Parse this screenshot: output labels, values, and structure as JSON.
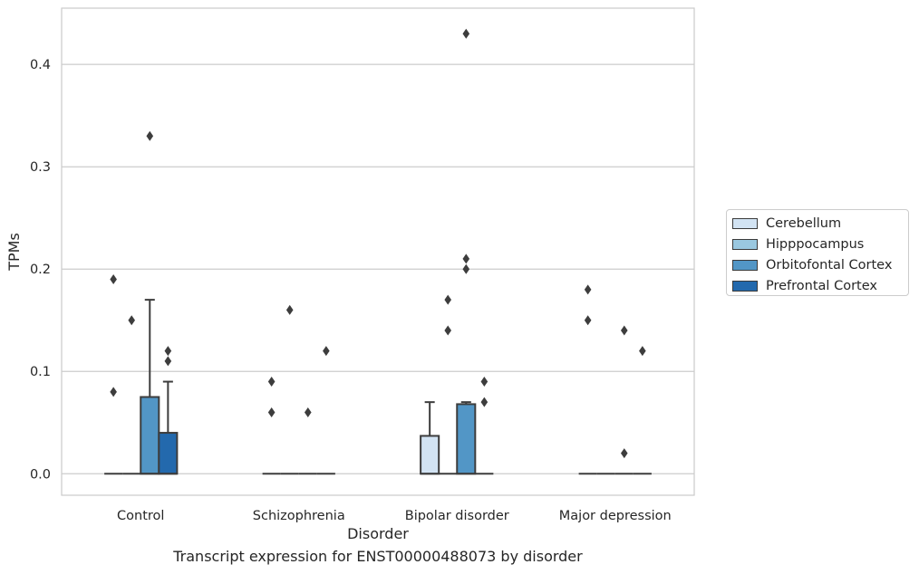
{
  "chart_data": {
    "type": "box",
    "xlabel": "Disorder",
    "ylabel": "TPMs",
    "caption": "Transcript expression for ENST00000488073 by disorder",
    "ylim": [
      -0.021,
      0.455
    ],
    "yticks": [
      0.0,
      0.1,
      0.2,
      0.3,
      0.4
    ],
    "ytick_labels": [
      "0.0",
      "0.1",
      "0.2",
      "0.3",
      "0.4"
    ],
    "grid": true,
    "legend_position": "right",
    "categories": [
      "Control",
      "Schizophrenia",
      "Bipolar disorder",
      "Major depression"
    ],
    "series": [
      {
        "name": "Cerebellum",
        "color": "#d2e3f3",
        "boxes": [
          {
            "q1": 0,
            "median": 0,
            "q3": 0,
            "whisker_low": 0,
            "whisker_high": 0,
            "outliers": [
              0.08,
              0.19
            ]
          },
          {
            "q1": 0,
            "median": 0,
            "q3": 0,
            "whisker_low": 0,
            "whisker_high": 0,
            "outliers": [
              0.06,
              0.09
            ]
          },
          {
            "q1": 0,
            "median": 0,
            "q3": 0.037,
            "whisker_low": 0,
            "whisker_high": 0.07,
            "outliers": []
          },
          {
            "q1": 0,
            "median": 0,
            "q3": 0,
            "whisker_low": 0,
            "whisker_high": 0,
            "outliers": [
              0.15,
              0.18
            ]
          }
        ]
      },
      {
        "name": "Hipppocampus",
        "color": "#9ac8e0",
        "boxes": [
          {
            "q1": 0,
            "median": 0,
            "q3": 0,
            "whisker_low": 0,
            "whisker_high": 0,
            "outliers": [
              0.15
            ]
          },
          {
            "q1": 0,
            "median": 0,
            "q3": 0,
            "whisker_low": 0,
            "whisker_high": 0,
            "outliers": [
              0.16
            ]
          },
          {
            "q1": 0,
            "median": 0,
            "q3": 0,
            "whisker_low": 0,
            "whisker_high": 0,
            "outliers": [
              0.14,
              0.17
            ]
          },
          {
            "q1": 0,
            "median": 0,
            "q3": 0,
            "whisker_low": 0,
            "whisker_high": 0,
            "outliers": []
          }
        ]
      },
      {
        "name": "Orbitofontal Cortex",
        "color": "#5296c6",
        "boxes": [
          {
            "q1": 0,
            "median": 0,
            "q3": 0.075,
            "whisker_low": 0,
            "whisker_high": 0.17,
            "outliers": [
              0.33
            ]
          },
          {
            "q1": 0,
            "median": 0,
            "q3": 0,
            "whisker_low": 0,
            "whisker_high": 0,
            "outliers": [
              0.06
            ]
          },
          {
            "q1": 0,
            "median": 0,
            "q3": 0.068,
            "whisker_low": 0,
            "whisker_high": 0.07,
            "outliers": [
              0.2,
              0.21,
              0.43
            ]
          },
          {
            "q1": 0,
            "median": 0,
            "q3": 0,
            "whisker_low": 0,
            "whisker_high": 0,
            "outliers": [
              0.02,
              0.14
            ]
          }
        ]
      },
      {
        "name": "Prefrontal Cortex",
        "color": "#2369ad",
        "boxes": [
          {
            "q1": 0,
            "median": 0,
            "q3": 0.04,
            "whisker_low": 0,
            "whisker_high": 0.09,
            "outliers": [
              0.11,
              0.12
            ]
          },
          {
            "q1": 0,
            "median": 0,
            "q3": 0,
            "whisker_low": 0,
            "whisker_high": 0,
            "outliers": [
              0.12
            ]
          },
          {
            "q1": 0,
            "median": 0,
            "q3": 0,
            "whisker_low": 0,
            "whisker_high": 0,
            "outliers": [
              0.07,
              0.09
            ]
          },
          {
            "q1": 0,
            "median": 0,
            "q3": 0,
            "whisker_low": 0,
            "whisker_high": 0,
            "outliers": [
              0.12
            ]
          }
        ]
      }
    ]
  }
}
